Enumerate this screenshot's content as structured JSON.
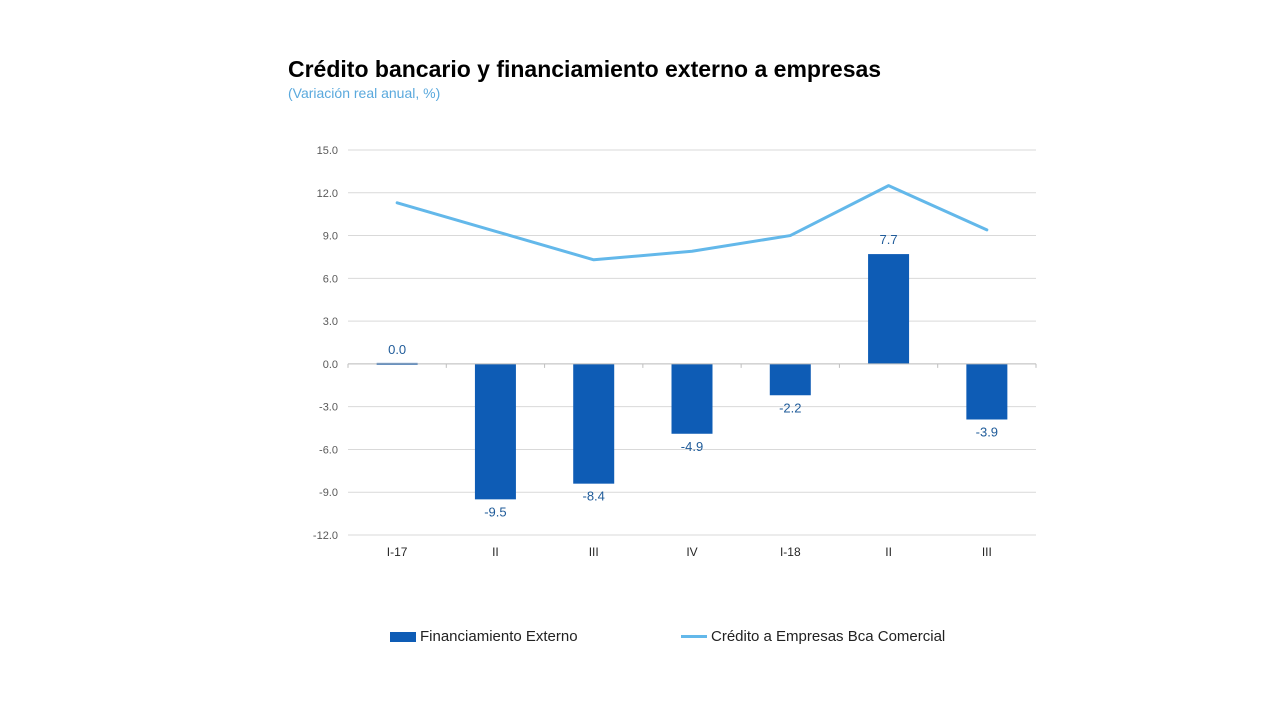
{
  "title": "Crédito bancario y financiamiento externo a empresas",
  "subtitle": "(Variación real anual, %)",
  "colors": {
    "bar": "#0e5cb5",
    "line": "#63b8ea",
    "grid": "#d9d9d9",
    "axis_text": "#595959",
    "label_text": "#1f5b99"
  },
  "chart_data": {
    "type": "bar+line",
    "categories": [
      "I-17",
      "II",
      "III",
      "IV",
      "I-18",
      "II",
      "III"
    ],
    "series": [
      {
        "name": "Financiamiento Externo",
        "type": "bar",
        "values": [
          0.0,
          -9.5,
          -8.4,
          -4.9,
          -2.2,
          7.7,
          -3.9
        ],
        "labels": [
          "0.0",
          "-9.5",
          "-8.4",
          "-4.9",
          "-2.2",
          "7.7",
          "-3.9"
        ]
      },
      {
        "name": "Crédito a Empresas Bca Comercial",
        "type": "line",
        "values": [
          11.3,
          9.3,
          7.3,
          7.9,
          9.0,
          12.5,
          9.4
        ]
      }
    ],
    "ylim": [
      -12,
      15
    ],
    "yticks": [
      15,
      12,
      9,
      6,
      3,
      0,
      -3,
      -6,
      -9,
      -12
    ],
    "ytick_labels": [
      "15.0",
      "12.0",
      "9.0",
      "6.0",
      "3.0",
      "0.0",
      "-3.0",
      "-6.0",
      "-9.0",
      "-12.0"
    ],
    "grid": true,
    "legend_position": "bottom"
  }
}
